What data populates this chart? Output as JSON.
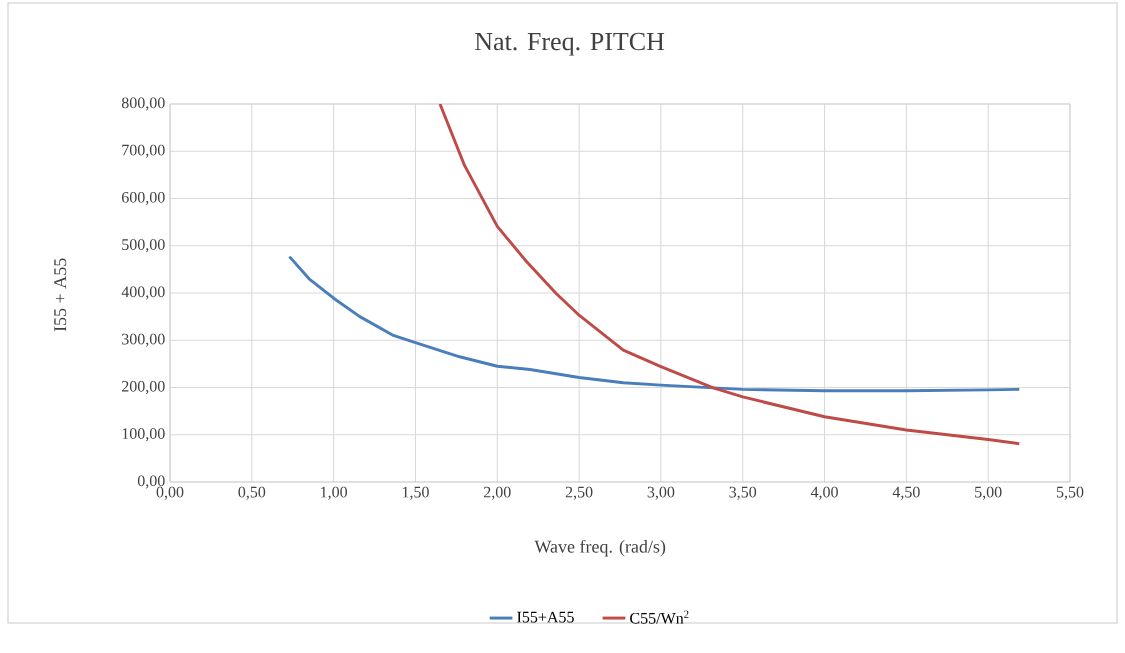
{
  "chart_data": {
    "type": "line",
    "title": "Nat. Freq. PITCH",
    "xlabel": "Wave freq. (rad/s)",
    "ylabel": "I55 + A55",
    "xlim": [
      0,
      5.5
    ],
    "ylim": [
      0,
      800
    ],
    "xticks": [
      {
        "value": 0,
        "label": "0,00"
      },
      {
        "value": 0.5,
        "label": "0,50"
      },
      {
        "value": 1,
        "label": "1,00"
      },
      {
        "value": 1.5,
        "label": "1,50"
      },
      {
        "value": 2,
        "label": "2,00"
      },
      {
        "value": 2.5,
        "label": "2,50"
      },
      {
        "value": 3,
        "label": "3,00"
      },
      {
        "value": 3.5,
        "label": "3,50"
      },
      {
        "value": 4,
        "label": "4,00"
      },
      {
        "value": 4.5,
        "label": "4,50"
      },
      {
        "value": 5,
        "label": "5,00"
      },
      {
        "value": 5.5,
        "label": "5,50"
      }
    ],
    "yticks": [
      {
        "value": 0,
        "label": "0,00"
      },
      {
        "value": 100,
        "label": "100,00"
      },
      {
        "value": 200,
        "label": "200,00"
      },
      {
        "value": 300,
        "label": "300,00"
      },
      {
        "value": 400,
        "label": "400,00"
      },
      {
        "value": 500,
        "label": "500,00"
      },
      {
        "value": 600,
        "label": "600,00"
      },
      {
        "value": 700,
        "label": "700,00"
      },
      {
        "value": 800,
        "label": "800,00"
      }
    ],
    "grid": true,
    "legend": "bottom",
    "marker": "none",
    "line_style": "solid",
    "series": [
      {
        "name": "I55+A55",
        "color": "#4a7ebb",
        "x": [
          0.73,
          0.85,
          1.0,
          1.16,
          1.36,
          1.5,
          1.77,
          2.0,
          2.2,
          2.5,
          2.77,
          3.0,
          3.5,
          4.0,
          4.5,
          5.0,
          5.19
        ],
        "values": [
          477,
          430,
          389,
          350,
          311,
          295,
          265,
          245,
          238,
          221,
          210,
          205,
          196,
          193,
          193,
          195,
          196
        ]
      },
      {
        "name": "C55/Wn$^{2}$",
        "color": "#be4b48",
        "x": [
          1.65,
          1.8,
          2.0,
          2.17,
          2.36,
          2.5,
          2.77,
          3.0,
          3.32,
          3.5,
          4.0,
          4.5,
          5.0,
          5.19
        ],
        "values": [
          800,
          670,
          541,
          470,
          399,
          353,
          279,
          244,
          199,
          180,
          138,
          110,
          90,
          81
        ]
      }
    ]
  }
}
